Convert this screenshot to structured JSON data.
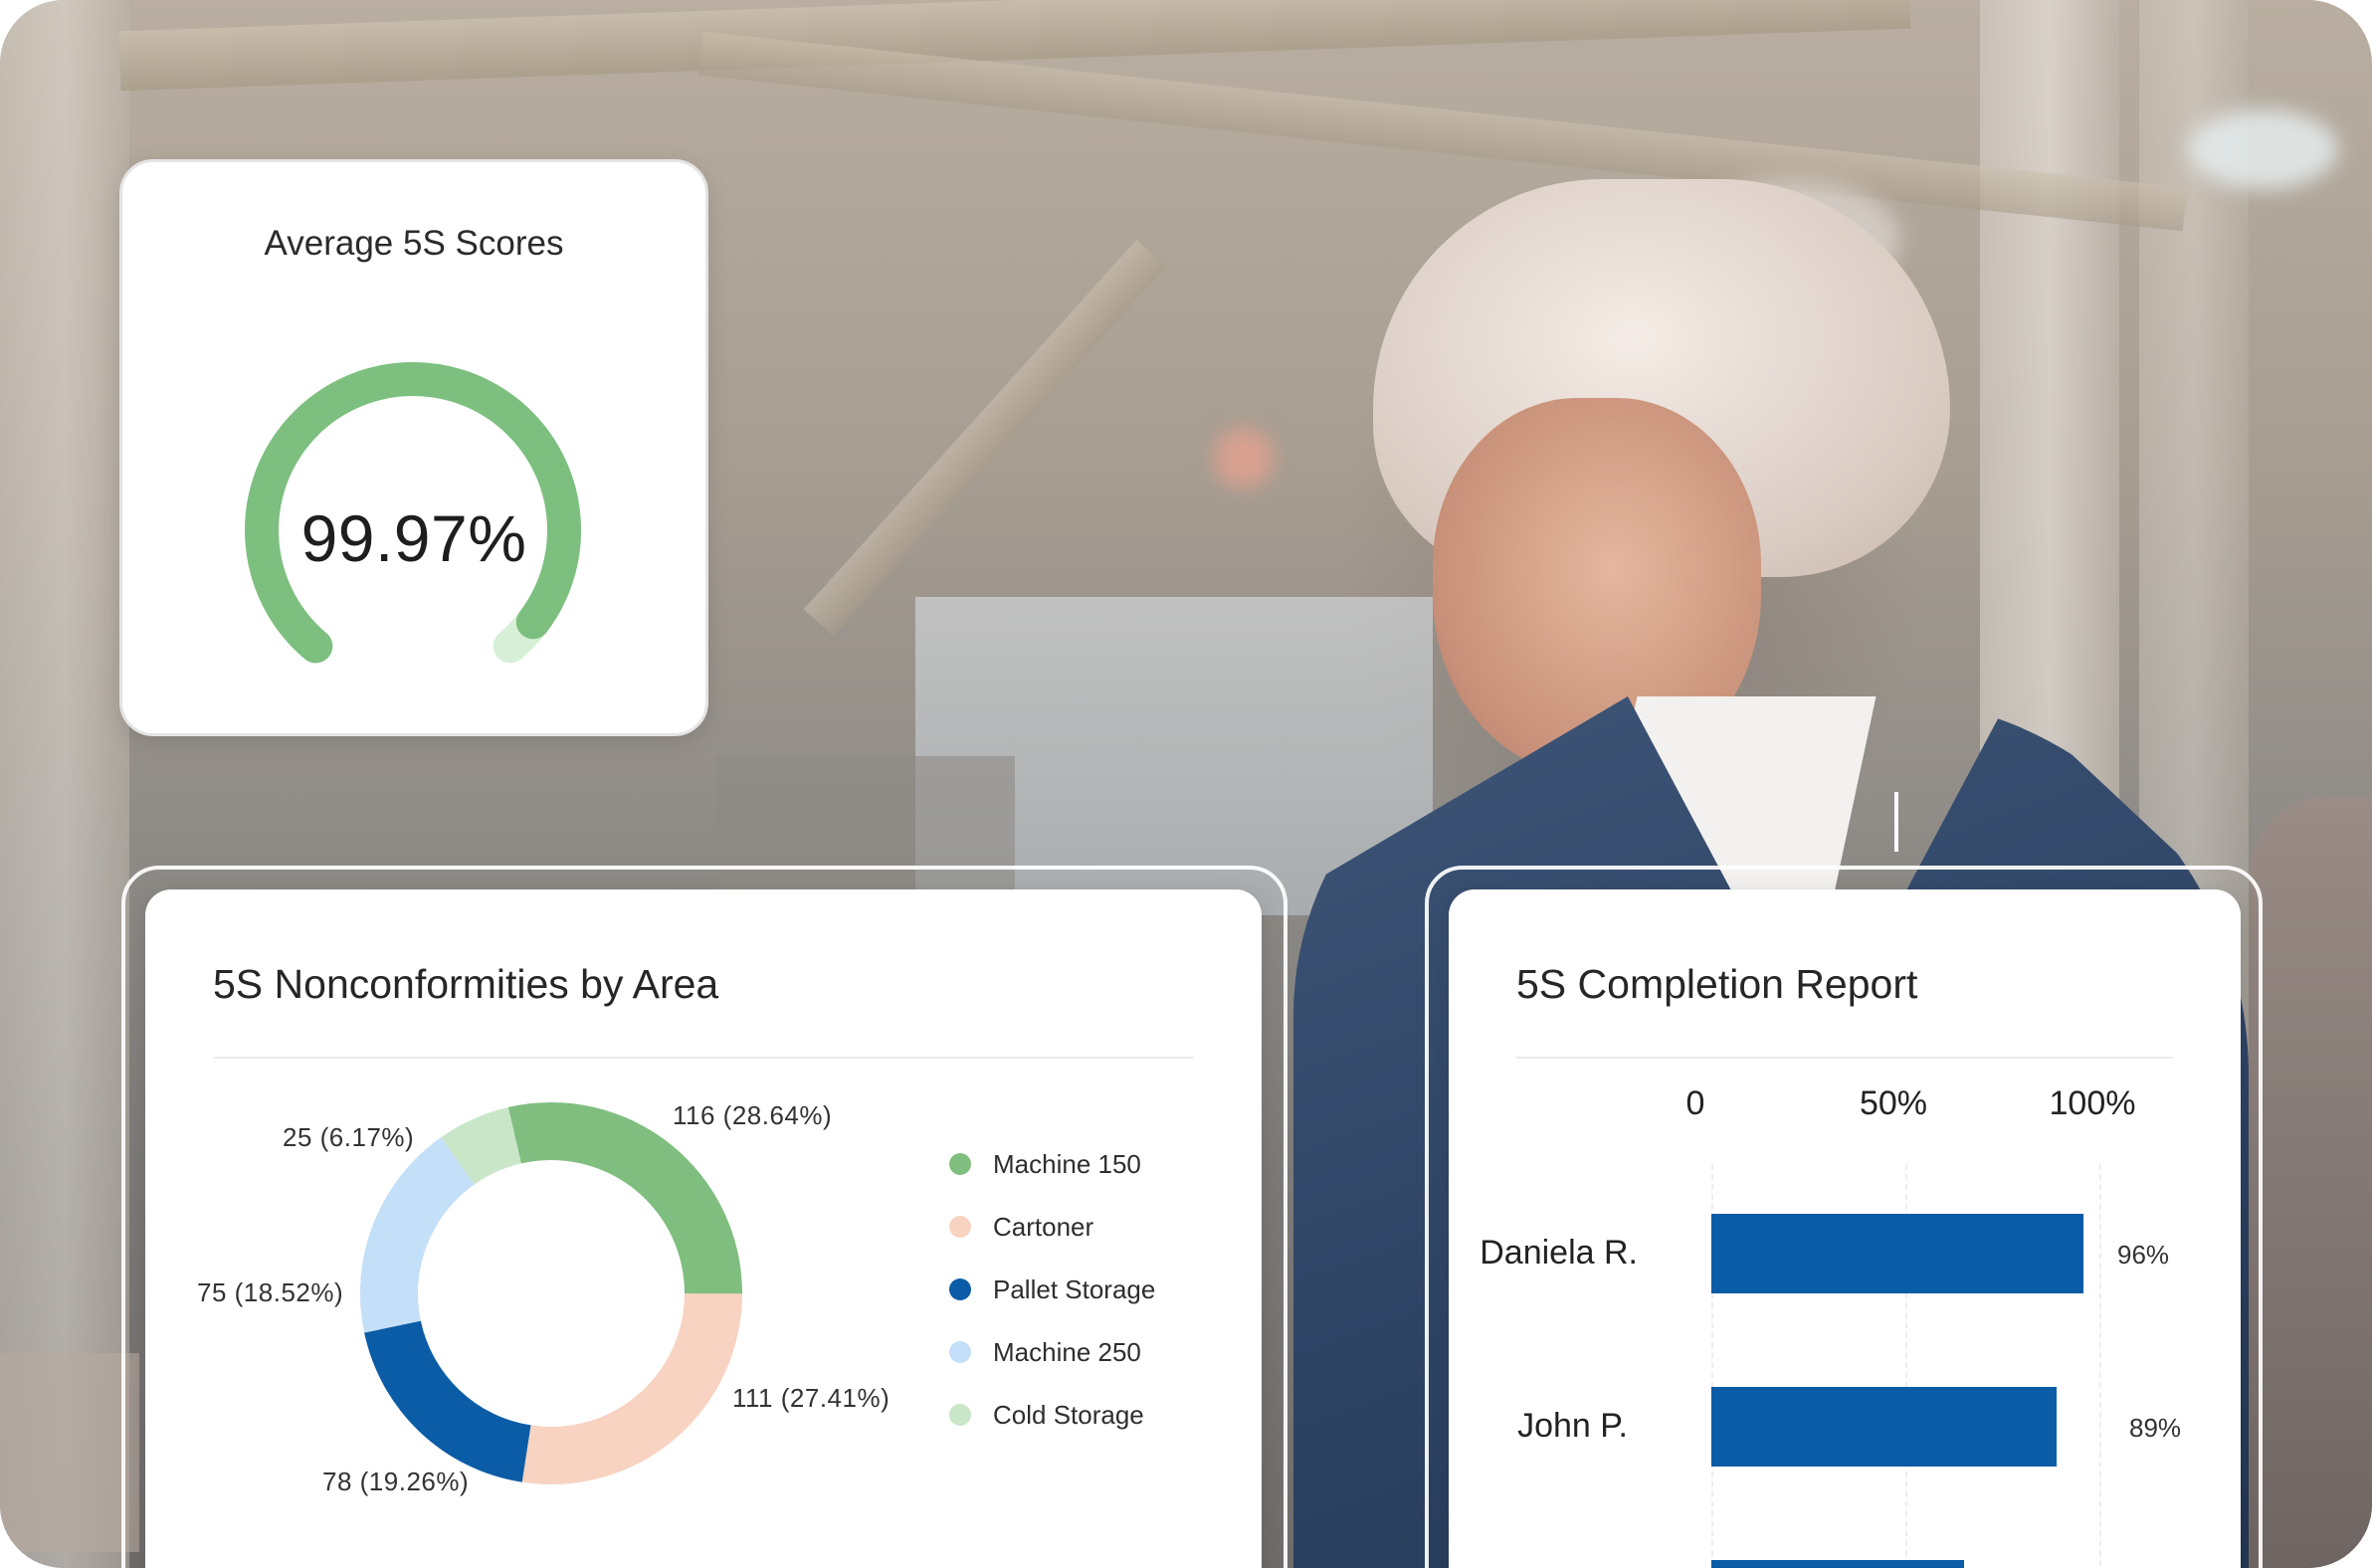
{
  "gauge": {
    "title": "Average 5S Scores",
    "value_text": "99.97%",
    "value": 99.97,
    "arc_color": "#7dbf7f",
    "track_color": "#d6efd6"
  },
  "nonconformities": {
    "title": "5S Nonconformities by Area",
    "slice_labels": {
      "machine_150": "116 (28.64%)",
      "cartoner": "111 (27.41%)",
      "pallet_storage": "78 (19.26%)",
      "machine_250": "75 (18.52%)",
      "cold_storage": "25 (6.17%)"
    },
    "legend": [
      {
        "label": "Machine 150",
        "color": "#7fbe7f"
      },
      {
        "label": "Cartoner",
        "color": "#f8d3c1"
      },
      {
        "label": "Pallet Storage",
        "color": "#0b5ca6"
      },
      {
        "label": "Machine 250",
        "color": "#c4dff8"
      },
      {
        "label": "Cold Storage",
        "color": "#c9e6c9"
      }
    ]
  },
  "completion": {
    "title": "5S Completion Report",
    "ticks": [
      "0",
      "50%",
      "100%"
    ],
    "rows": [
      {
        "name": "Daniela R.",
        "pct_label": "96%"
      },
      {
        "name": "John P.",
        "pct_label": "89%"
      }
    ],
    "bar_color": "#0b5ca6"
  },
  "chart_data": [
    {
      "type": "pie",
      "title": "5S Nonconformities by Area",
      "categories": [
        "Machine 150",
        "Cartoner",
        "Pallet Storage",
        "Machine 250",
        "Cold Storage"
      ],
      "values": [
        116,
        111,
        78,
        75,
        25
      ],
      "percentages": [
        28.64,
        27.41,
        19.26,
        18.52,
        6.17
      ],
      "legend": "right"
    },
    {
      "type": "bar",
      "title": "5S Completion Report",
      "orientation": "horizontal",
      "categories": [
        "Daniela R.",
        "John P."
      ],
      "values": [
        96,
        89
      ],
      "xlim": [
        0,
        100
      ],
      "xticks": [
        "0",
        "50%",
        "100%"
      ],
      "grid": true
    }
  ]
}
